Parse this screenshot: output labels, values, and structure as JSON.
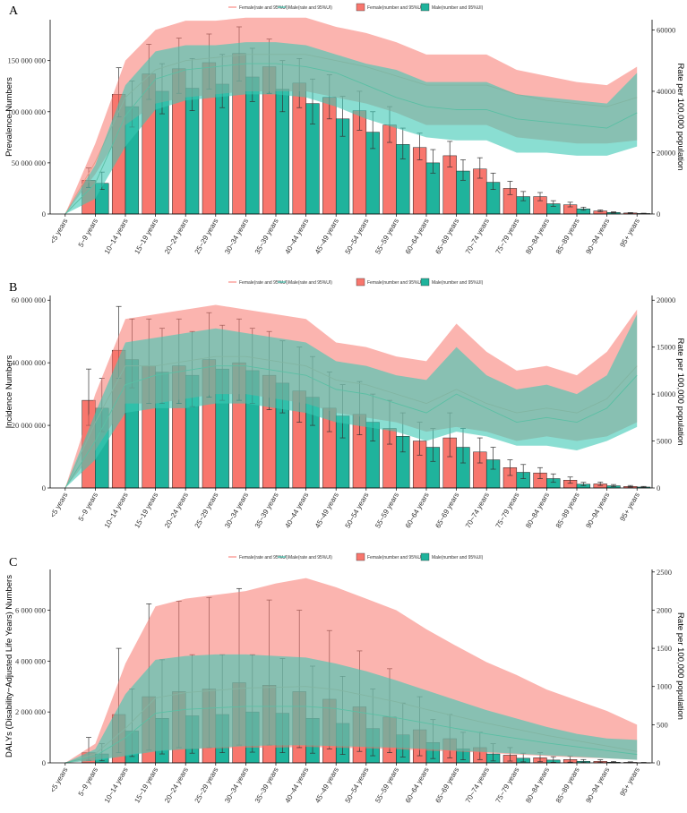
{
  "colors": {
    "female": "#F8766D",
    "male": "#1FB39C",
    "female_band": "#F8766D",
    "male_band": "#3CC8B4",
    "female_line": "#E99A88",
    "male_line": "#5BBFA4"
  },
  "legend_labels": [
    "Female(rate and 95%UI)",
    "Male(rate and 95%UI)",
    "Female(number and 95%UI)",
    "Male(number and 95%UI)"
  ],
  "categories": [
    "<5 years",
    "5~9 years",
    "10~14 years",
    "15~19 years",
    "20~24 years",
    "25~29 years",
    "30~34 years",
    "35~39 years",
    "40~44 years",
    "45~49 years",
    "50~54 years",
    "55~59 years",
    "60~64 years",
    "65~69 years",
    "70~74 years",
    "75~79 years",
    "80~84 years",
    "85~89 years",
    "90~94 years",
    "95+ years"
  ],
  "chart_data": [
    {
      "panel": "A",
      "type": "bar",
      "ylabel": "Prevalence Numbers",
      "y2label": "Rate per 100,000 population",
      "ylim": [
        0,
        190000000
      ],
      "y2lim": [
        0,
        63333
      ],
      "yticks": [
        0,
        50000000,
        100000000,
        150000000
      ],
      "ytick_labels": [
        "0",
        "50 000 000",
        "100 000 000",
        "150 000 000"
      ],
      "y2ticks": [
        0,
        20000,
        40000,
        60000
      ],
      "y2tick_labels": [
        "0",
        "20000",
        "40000",
        "60000"
      ],
      "series": [
        {
          "name": "Female(number and 95%UI)",
          "values": [
            0,
            33000000,
            117000000,
            137000000,
            142000000,
            148000000,
            157000000,
            144000000,
            128000000,
            114000000,
            101000000,
            87000000,
            65000000,
            57000000,
            44000000,
            25000000,
            17000000,
            9000000,
            3000000,
            1000000
          ],
          "lower": [
            0,
            26000000,
            95000000,
            112000000,
            118000000,
            122000000,
            130000000,
            118000000,
            104000000,
            93000000,
            82000000,
            70000000,
            53000000,
            46000000,
            35000000,
            19000000,
            13000000,
            7000000,
            2200000,
            700000
          ],
          "upper": [
            0,
            45000000,
            143000000,
            166000000,
            172000000,
            176000000,
            183000000,
            171000000,
            152000000,
            136000000,
            120000000,
            105000000,
            79000000,
            71000000,
            55000000,
            32000000,
            21000000,
            11500000,
            4000000,
            1400000
          ]
        },
        {
          "name": "Male(number and 95%UI)",
          "values": [
            0,
            30000000,
            105000000,
            120000000,
            123000000,
            127000000,
            134000000,
            122000000,
            108000000,
            93000000,
            80000000,
            68000000,
            50000000,
            42000000,
            31000000,
            17000000,
            10000000,
            5000000,
            1500000,
            500000
          ],
          "lower": [
            0,
            24000000,
            85000000,
            98000000,
            101000000,
            104000000,
            110000000,
            100000000,
            88000000,
            76000000,
            64000000,
            54000000,
            40000000,
            33000000,
            24000000,
            13000000,
            7500000,
            3600000,
            1000000,
            300000
          ],
          "upper": [
            0,
            41000000,
            130000000,
            147000000,
            152000000,
            156000000,
            162000000,
            150000000,
            132000000,
            115000000,
            100000000,
            84000000,
            63000000,
            53000000,
            40000000,
            22000000,
            13000000,
            6700000,
            2100000,
            800000
          ]
        }
      ],
      "rate_series": [
        {
          "name": "Female(rate and 95%UI)",
          "values": [
            0,
            17000,
            38000,
            47000,
            50000,
            51000,
            52000,
            52000,
            52000,
            50000,
            48000,
            45000,
            42000,
            42000,
            42000,
            39000,
            37000,
            36000,
            35000,
            38000
          ],
          "lower": [
            0,
            13000,
            29000,
            36000,
            38000,
            39000,
            40000,
            40000,
            40000,
            38000,
            36000,
            33000,
            29000,
            29000,
            29000,
            25000,
            24000,
            23000,
            23000,
            24000
          ],
          "upper": [
            0,
            23000,
            50000,
            60000,
            63000,
            63000,
            64000,
            64000,
            64000,
            61000,
            59000,
            56000,
            52000,
            52000,
            52000,
            47000,
            45000,
            43000,
            42000,
            48000
          ]
        },
        {
          "name": "Male(rate and 95%UI)",
          "values": [
            0,
            10000,
            32000,
            44000,
            47000,
            48000,
            49000,
            49000,
            48000,
            46000,
            42000,
            38000,
            35000,
            34000,
            34000,
            31000,
            30000,
            29000,
            28000,
            33000
          ],
          "lower": [
            0,
            5000,
            22000,
            34000,
            37000,
            38000,
            39000,
            39000,
            38000,
            35000,
            31000,
            28000,
            25000,
            24000,
            24000,
            20000,
            20000,
            19000,
            19000,
            22000
          ],
          "upper": [
            0,
            16000,
            42000,
            53000,
            55000,
            55000,
            56000,
            56000,
            55000,
            52000,
            49000,
            47000,
            43000,
            43000,
            43000,
            39000,
            38000,
            37000,
            36000,
            46000
          ]
        }
      ]
    },
    {
      "panel": "B",
      "type": "bar",
      "ylabel": "Incidence Numbers",
      "y2label": "Rate per 100,000 population",
      "ylim": [
        0,
        61500000
      ],
      "y2lim": [
        0,
        20500
      ],
      "yticks": [
        0,
        20000000,
        40000000,
        60000000
      ],
      "ytick_labels": [
        "0",
        "20 000 000",
        "40 000 000",
        "60 000 000"
      ],
      "y2ticks": [
        0,
        5000,
        10000,
        15000,
        20000
      ],
      "y2tick_labels": [
        "0",
        "5000",
        "10000",
        "15000",
        "20000"
      ],
      "series": [
        {
          "name": "Female(number and 95%UI)",
          "values": [
            0,
            28000000,
            44000000,
            39000000,
            39000000,
            41000000,
            40000000,
            36000000,
            31000000,
            25500000,
            23500000,
            19000000,
            15000000,
            16000000,
            11500000,
            6500000,
            4800000,
            2500000,
            1300000,
            500000
          ],
          "lower": [
            0,
            20000000,
            35000000,
            27000000,
            27000000,
            29000000,
            28000000,
            25000000,
            21000000,
            18000000,
            17000000,
            14000000,
            10500000,
            10000000,
            8000000,
            4000000,
            3000000,
            1500000,
            800000,
            300000
          ],
          "upper": [
            0,
            38000000,
            58000000,
            54000000,
            54000000,
            56000000,
            54000000,
            50000000,
            45000000,
            37000000,
            34000000,
            28000000,
            21000000,
            24000000,
            16000000,
            9000000,
            6500000,
            3500000,
            1900000,
            800000
          ]
        },
        {
          "name": "Male(number and 95%UI)",
          "values": [
            0,
            25500000,
            41000000,
            37000000,
            36000000,
            38000000,
            37500000,
            33500000,
            29000000,
            23000000,
            21000000,
            16500000,
            13000000,
            13000000,
            9000000,
            5000000,
            3000000,
            1200000,
            700000,
            300000
          ],
          "lower": [
            0,
            18000000,
            32000000,
            27000000,
            26000000,
            28000000,
            27000000,
            24000000,
            20000000,
            16000000,
            15000000,
            11500000,
            8500000,
            8000000,
            6000000,
            3000000,
            1800000,
            700000,
            400000,
            150000
          ],
          "upper": [
            0,
            35000000,
            54000000,
            51000000,
            50000000,
            52000000,
            51000000,
            47000000,
            42000000,
            33000000,
            30000000,
            24000000,
            19000000,
            19000000,
            13000000,
            7500000,
            4500000,
            1800000,
            1100000,
            500000
          ]
        }
      ],
      "rate_series": [
        {
          "name": "Female(rate and 95%UI)",
          "values": [
            0,
            7000,
            13000,
            13000,
            13500,
            14000,
            14000,
            13500,
            13000,
            11500,
            11000,
            10000,
            9000,
            10500,
            9000,
            8000,
            8500,
            8000,
            9500,
            13000
          ],
          "lower": [
            0,
            4000,
            9000,
            9000,
            9500,
            10000,
            10000,
            9500,
            9000,
            8000,
            7500,
            7000,
            6000,
            6500,
            6000,
            5000,
            5500,
            5000,
            5500,
            7000
          ],
          "upper": [
            0,
            10000,
            18000,
            18500,
            19000,
            19500,
            19000,
            18500,
            18000,
            15500,
            15000,
            14000,
            13500,
            17500,
            14500,
            12500,
            13000,
            12000,
            14500,
            19000
          ]
        },
        {
          "name": "Male(rate and 95%UI)",
          "values": [
            0,
            5000,
            11000,
            12000,
            12500,
            13000,
            13000,
            12500,
            12000,
            10500,
            10000,
            9000,
            8000,
            10000,
            8500,
            7000,
            7500,
            7000,
            8500,
            12000
          ],
          "lower": [
            0,
            3000,
            8000,
            8500,
            8500,
            9000,
            9000,
            8500,
            8000,
            7000,
            6500,
            6000,
            5000,
            6000,
            5500,
            4500,
            4500,
            4000,
            5000,
            6500
          ],
          "upper": [
            0,
            8000,
            15500,
            16000,
            16500,
            17000,
            16500,
            16000,
            15500,
            13500,
            13000,
            12000,
            11500,
            15000,
            12000,
            10500,
            11000,
            10000,
            12000,
            18500
          ]
        }
      ]
    },
    {
      "panel": "C",
      "type": "bar",
      "ylabel": "DALYs (Disability−Adjusted Life Years) Numbers",
      "y2label": "Rate per 100,000 population",
      "ylim": [
        0,
        7600000
      ],
      "y2lim": [
        0,
        2533
      ],
      "yticks": [
        0,
        2000000,
        4000000,
        6000000
      ],
      "ytick_labels": [
        "0",
        "2 000 000",
        "4 000 000",
        "6 000 000"
      ],
      "y2ticks": [
        0,
        500,
        1000,
        1500,
        2000,
        2500
      ],
      "y2tick_labels": [
        "0",
        "500",
        "1000",
        "1500",
        "2000",
        "2500"
      ],
      "series": [
        {
          "name": "Female(number and 95%UI)",
          "values": [
            0,
            400000,
            1900000,
            2600000,
            2800000,
            2900000,
            3150000,
            3050000,
            2800000,
            2500000,
            2200000,
            1800000,
            1300000,
            950000,
            600000,
            300000,
            200000,
            130000,
            60000,
            20000
          ],
          "lower": [
            0,
            100000,
            400000,
            500000,
            600000,
            600000,
            700000,
            700000,
            600000,
            550000,
            450000,
            400000,
            280000,
            200000,
            130000,
            70000,
            45000,
            30000,
            15000,
            5000
          ],
          "upper": [
            0,
            1000000,
            4500000,
            6250000,
            6350000,
            6500000,
            6850000,
            6400000,
            6000000,
            5200000,
            4400000,
            3700000,
            2600000,
            1900000,
            1200000,
            600000,
            400000,
            260000,
            120000,
            40000
          ]
        },
        {
          "name": "Male(number and 95%UI)",
          "values": [
            0,
            350000,
            1250000,
            1750000,
            1850000,
            1900000,
            2000000,
            1950000,
            1750000,
            1550000,
            1350000,
            1100000,
            800000,
            550000,
            350000,
            180000,
            110000,
            60000,
            25000,
            8000
          ],
          "lower": [
            0,
            80000,
            250000,
            350000,
            380000,
            400000,
            420000,
            400000,
            380000,
            330000,
            280000,
            230000,
            170000,
            120000,
            75000,
            40000,
            25000,
            14000,
            6000,
            2000
          ],
          "upper": [
            0,
            750000,
            2900000,
            4050000,
            4250000,
            4250000,
            4250000,
            4100000,
            3800000,
            3400000,
            2900000,
            2350000,
            1700000,
            1200000,
            750000,
            380000,
            240000,
            130000,
            55000,
            18000
          ]
        }
      ],
      "rate_series": [
        {
          "name": "Female(rate and 95%UI)",
          "values": [
            0,
            120,
            450,
            850,
            920,
            950,
            980,
            990,
            1000,
            960,
            880,
            800,
            700,
            610,
            520,
            440,
            360,
            290,
            220,
            150
          ],
          "lower": [
            0,
            40,
            100,
            160,
            180,
            190,
            200,
            200,
            210,
            200,
            190,
            180,
            160,
            150,
            130,
            110,
            90,
            70,
            60,
            40
          ],
          "upper": [
            0,
            250,
            1300,
            2050,
            2150,
            2200,
            2250,
            2350,
            2420,
            2300,
            2150,
            2000,
            1750,
            1530,
            1320,
            1150,
            960,
            820,
            680,
            500
          ]
        },
        {
          "name": "Male(rate and 95%UI)",
          "values": [
            0,
            90,
            330,
            650,
            700,
            720,
            740,
            740,
            740,
            710,
            650,
            590,
            520,
            450,
            380,
            320,
            260,
            210,
            160,
            110
          ],
          "lower": [
            0,
            30,
            90,
            150,
            180,
            200,
            220,
            230,
            230,
            220,
            210,
            200,
            180,
            160,
            140,
            120,
            100,
            80,
            60,
            40
          ],
          "upper": [
            0,
            180,
            900,
            1350,
            1400,
            1420,
            1420,
            1400,
            1380,
            1300,
            1200,
            1080,
            950,
            820,
            690,
            580,
            470,
            380,
            320,
            300
          ]
        }
      ]
    }
  ]
}
